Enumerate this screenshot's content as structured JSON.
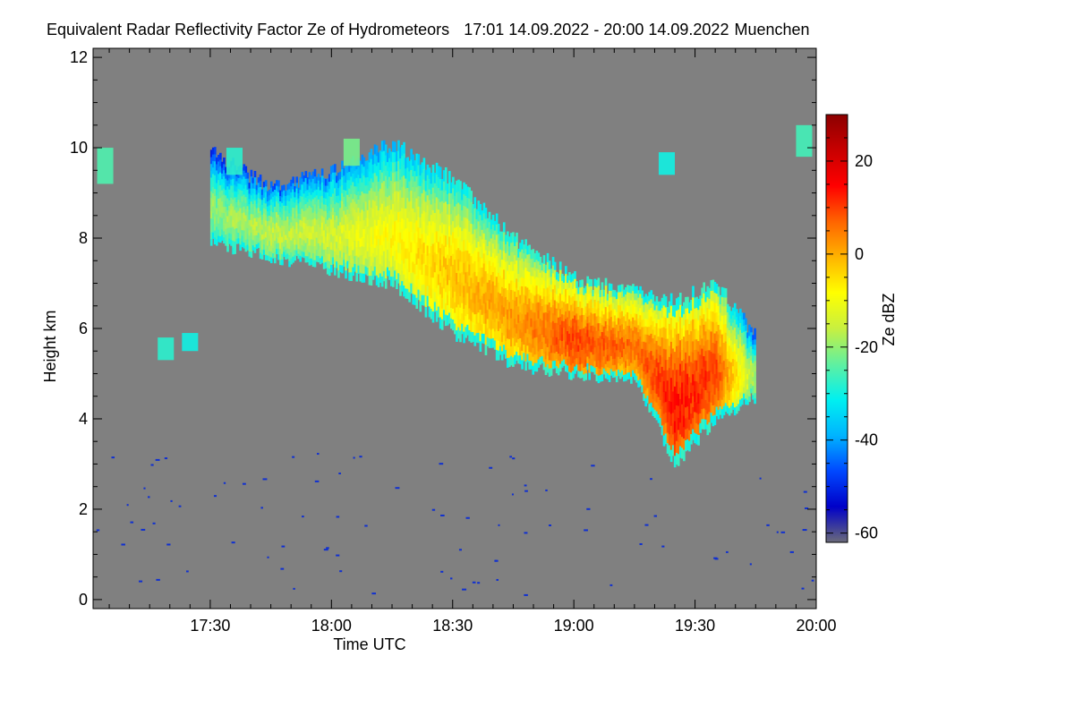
{
  "chart_data": {
    "type": "heatmap",
    "title": "Equivalent Radar Reflectivity Factor Ze of Hydrometeors",
    "time_range": "17:01 14.09.2022 - 20:00 14.09.2022",
    "location": "Muenchen",
    "xlabel": "Time UTC",
    "ylabel": "Height km",
    "x_range_min": [
      1021,
      1200
    ],
    "x_ticks": [
      {
        "min": 1050,
        "label": "17:30"
      },
      {
        "min": 1080,
        "label": "18:00"
      },
      {
        "min": 1110,
        "label": "18:30"
      },
      {
        "min": 1140,
        "label": "19:00"
      },
      {
        "min": 1170,
        "label": "19:30"
      },
      {
        "min": 1200,
        "label": "20:00"
      }
    ],
    "y_range_km": [
      -0.2,
      12.2
    ],
    "y_ticks": [
      0,
      2,
      4,
      6,
      8,
      10,
      12
    ],
    "colorbar": {
      "label": "Ze dBZ",
      "range": [
        -62,
        30
      ],
      "ticks": [
        20,
        0,
        -20,
        -40,
        -60
      ],
      "colors": [
        "#6b6b7a",
        "#0000c8",
        "#0048ff",
        "#00b4ff",
        "#00f0f0",
        "#60f0a0",
        "#c8f040",
        "#ffff00",
        "#ffb400",
        "#ff6400",
        "#ff0000",
        "#c80000",
        "#8c0000"
      ]
    },
    "background_color": "#808080",
    "cloud": {
      "description_points": [
        {
          "t": 1050,
          "top": 9.9,
          "base": 7.9,
          "ze": -20
        },
        {
          "t": 1065,
          "top": 9.1,
          "base": 7.6,
          "ze": -16
        },
        {
          "t": 1080,
          "top": 9.5,
          "base": 7.3,
          "ze": -14
        },
        {
          "t": 1095,
          "top": 10.1,
          "base": 7.0,
          "ze": -8
        },
        {
          "t": 1110,
          "top": 9.3,
          "base": 5.9,
          "ze": -2
        },
        {
          "t": 1125,
          "top": 8.0,
          "base": 5.2,
          "ze": 2
        },
        {
          "t": 1140,
          "top": 7.1,
          "base": 5.0,
          "ze": 10
        },
        {
          "t": 1155,
          "top": 6.8,
          "base": 4.8,
          "ze": 6
        },
        {
          "t": 1165,
          "top": 6.6,
          "base": 3.0,
          "ze": 14
        },
        {
          "t": 1175,
          "top": 7.0,
          "base": 4.0,
          "ze": 10
        },
        {
          "t": 1185,
          "top": 5.8,
          "base": 4.5,
          "ze": -20
        }
      ],
      "max_ze": 14
    }
  }
}
